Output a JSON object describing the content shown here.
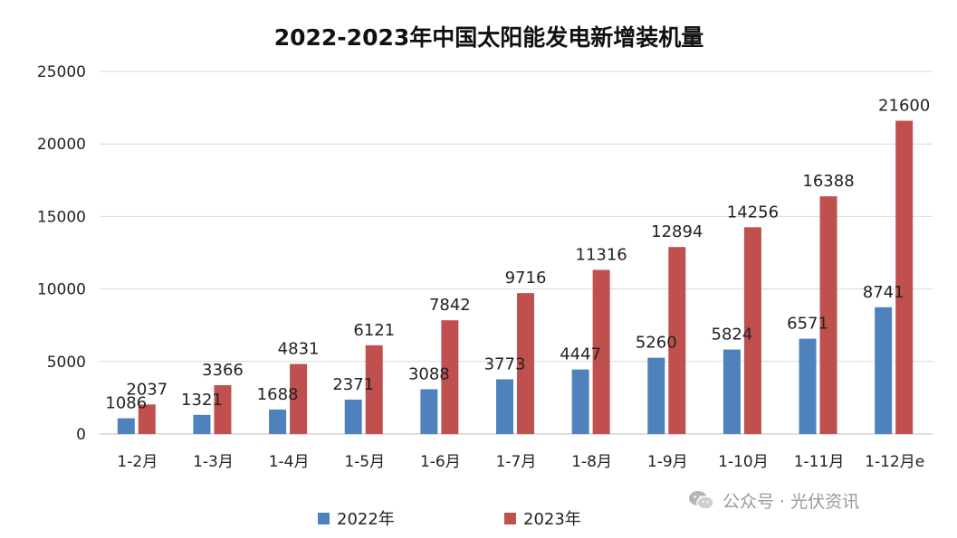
{
  "chart_data": {
    "type": "bar",
    "title": "2022-2023年中国太阳能发电新增装机量",
    "categories": [
      "1-2月",
      "1-3月",
      "1-4月",
      "1-5月",
      "1-6月",
      "1-7月",
      "1-8月",
      "1-9月",
      "1-10月",
      "1-11月",
      "1-12月e"
    ],
    "series": [
      {
        "name": "2022年",
        "color": "#4F81BD",
        "values": [
          1086,
          1321,
          1688,
          2371,
          3088,
          3773,
          4447,
          5260,
          5824,
          6571,
          8741
        ]
      },
      {
        "name": "2023年",
        "color": "#C0504D",
        "values": [
          2037,
          3366,
          4831,
          6121,
          7842,
          9716,
          11316,
          12894,
          14256,
          16388,
          21600
        ]
      }
    ],
    "ylim": [
      0,
      25000
    ],
    "yticks": [
      0,
      5000,
      10000,
      15000,
      20000,
      25000
    ],
    "grid": true,
    "legend_position": "bottom",
    "xlabel": "",
    "ylabel": ""
  },
  "watermark": {
    "text": "公众号 · 光伏资讯",
    "icon": "wechat-icon"
  }
}
